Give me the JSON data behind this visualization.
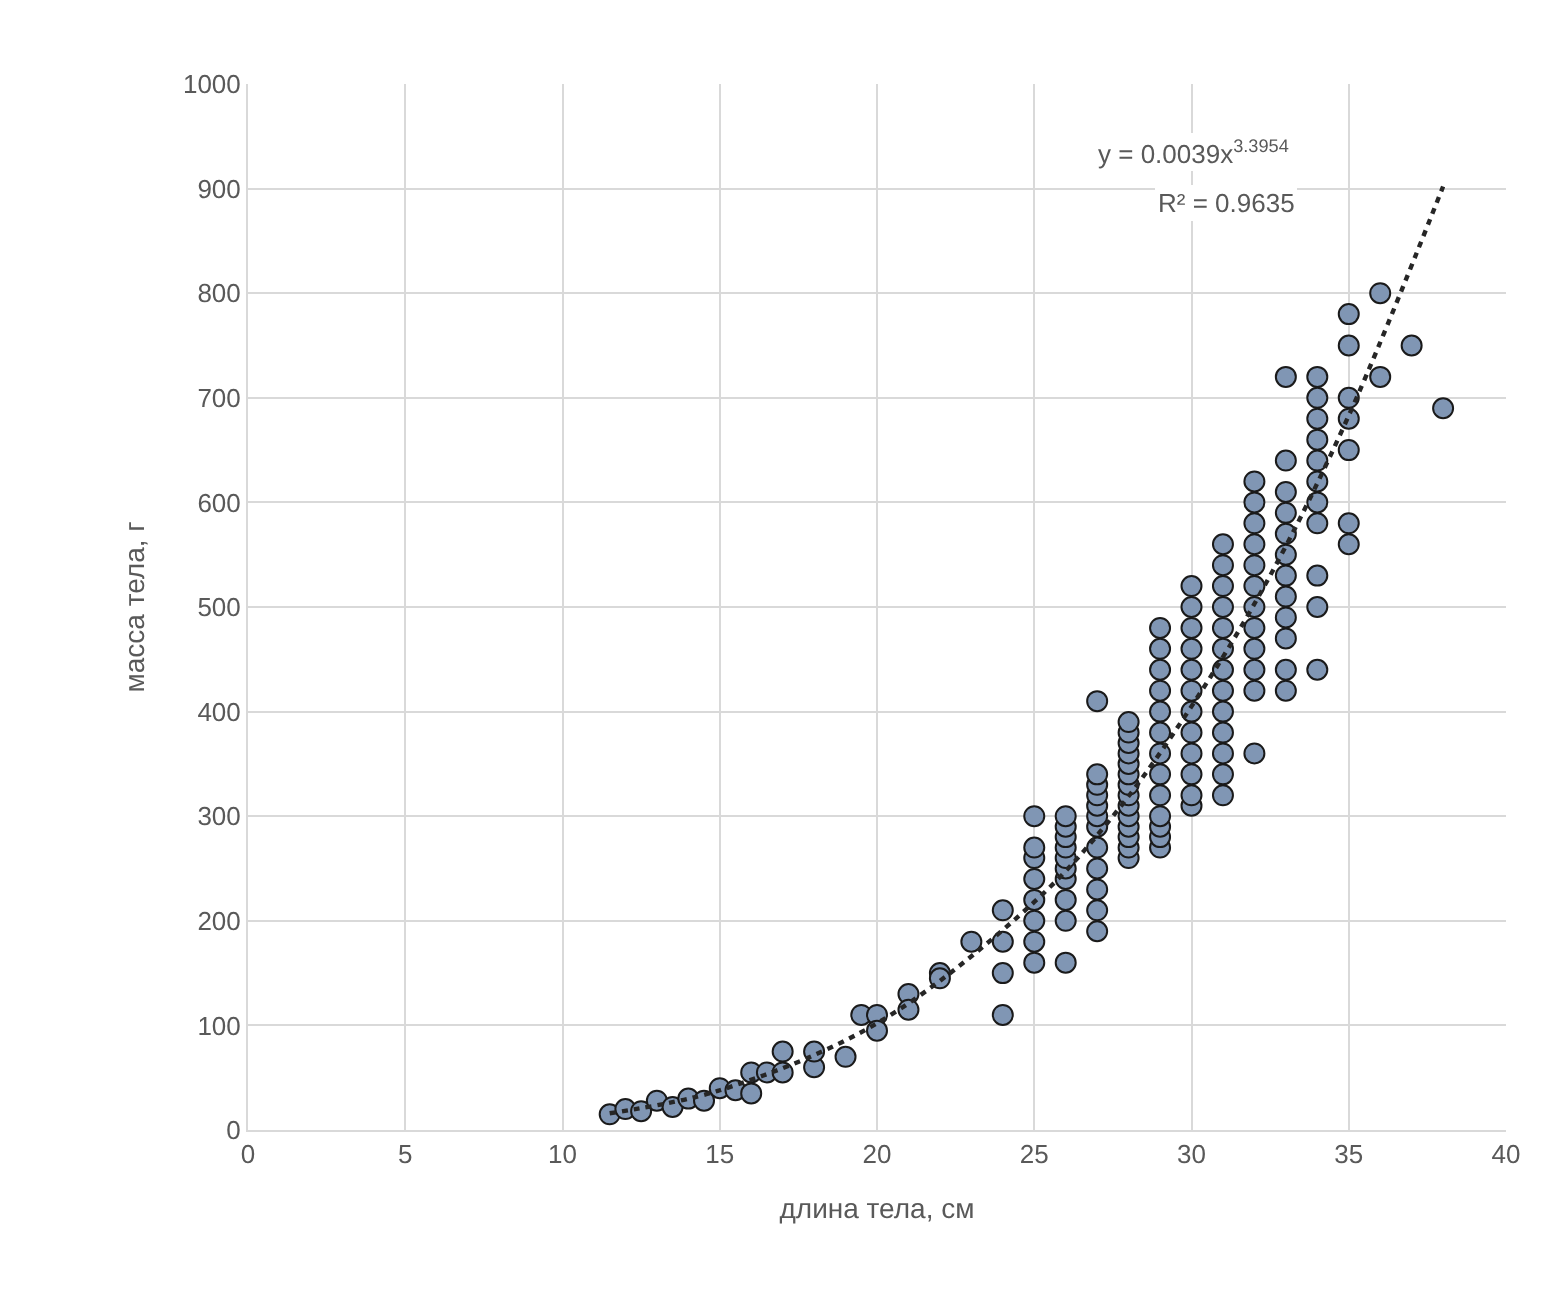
{
  "chart_data": {
    "type": "scatter",
    "xlabel": "длина тела, см",
    "ylabel": "масса тела, г",
    "xlim": [
      0,
      40
    ],
    "xticks": [
      0,
      5,
      10,
      15,
      20,
      25,
      30,
      35,
      40
    ],
    "ylim": [
      0,
      1000
    ],
    "yticks": [
      0,
      100,
      200,
      300,
      400,
      500,
      600,
      700,
      800,
      900,
      1000
    ],
    "grid": true,
    "legend": false,
    "marker": "circle",
    "annotations": [
      "y = 0.0039x$^{3.3954}$",
      "R² = 0.9635"
    ],
    "series": [
      {
        "color": "#8096b4",
        "x": [
          11.5,
          12,
          12.5,
          13,
          13.5,
          14,
          14.5,
          15,
          15.5,
          16,
          16,
          16.5,
          17,
          17,
          18,
          18,
          19,
          19.5,
          20,
          20,
          21,
          21,
          22,
          22,
          23,
          24,
          24,
          24,
          24,
          25,
          25,
          25,
          25,
          25,
          25,
          25,
          25,
          26,
          26,
          26,
          26,
          26,
          26,
          26,
          26,
          26,
          26,
          27,
          27,
          27,
          27,
          27,
          27,
          27,
          27,
          27,
          27,
          27,
          27,
          28,
          28,
          28,
          28,
          28,
          28,
          28,
          28,
          28,
          28,
          28,
          28,
          28,
          28,
          29,
          29,
          29,
          29,
          29,
          29,
          29,
          29,
          29,
          29,
          29,
          29,
          29,
          30,
          30,
          30,
          30,
          30,
          30,
          30,
          30,
          30,
          30,
          30,
          30,
          31,
          31,
          31,
          31,
          31,
          31,
          31,
          31,
          31,
          31,
          31,
          31,
          31,
          32,
          32,
          32,
          32,
          32,
          32,
          32,
          32,
          32,
          32,
          32,
          32,
          33,
          33,
          33,
          33,
          33,
          33,
          33,
          33,
          33,
          33,
          33,
          33,
          34,
          34,
          34,
          34,
          34,
          34,
          34,
          34,
          34,
          34,
          34,
          35,
          35,
          35,
          35,
          35,
          35,
          35,
          36,
          36,
          37,
          38
        ],
        "values": [
          15,
          20,
          18,
          28,
          22,
          30,
          28,
          40,
          38,
          55,
          35,
          55,
          75,
          55,
          60,
          75,
          70,
          110,
          110,
          95,
          130,
          115,
          150,
          145,
          180,
          210,
          180,
          150,
          110,
          160,
          180,
          200,
          220,
          240,
          260,
          270,
          300,
          160,
          200,
          220,
          240,
          250,
          260,
          270,
          280,
          290,
          300,
          190,
          210,
          230,
          250,
          270,
          290,
          300,
          310,
          320,
          330,
          340,
          410,
          260,
          270,
          280,
          290,
          300,
          310,
          320,
          330,
          340,
          350,
          360,
          370,
          380,
          390,
          270,
          280,
          290,
          300,
          320,
          340,
          360,
          380,
          400,
          420,
          440,
          460,
          480,
          310,
          320,
          340,
          360,
          380,
          400,
          420,
          440,
          460,
          480,
          500,
          520,
          320,
          340,
          360,
          380,
          400,
          420,
          440,
          460,
          480,
          500,
          520,
          540,
          560,
          360,
          420,
          440,
          460,
          480,
          500,
          520,
          540,
          560,
          580,
          600,
          620,
          420,
          440,
          470,
          490,
          510,
          530,
          550,
          570,
          590,
          610,
          640,
          720,
          440,
          500,
          530,
          580,
          600,
          620,
          640,
          660,
          680,
          700,
          720,
          560,
          580,
          650,
          680,
          700,
          750,
          780,
          720,
          800,
          750,
          690
        ]
      },
      {
        "type": "line",
        "color": "#262626",
        "line_style": "dotted",
        "marker": "none",
        "x": [
          11.5,
          15,
          20,
          25,
          27.5,
          30,
          32.5,
          35,
          38
        ],
        "values": [
          16,
          38,
          102,
          218,
          300,
          405,
          530,
          683,
          902
        ]
      }
    ]
  }
}
